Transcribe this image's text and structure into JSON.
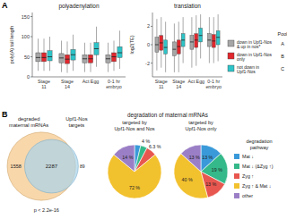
{
  "panel_labels": [
    "A",
    "B"
  ],
  "chart_data": [
    {
      "type": "box",
      "title": "polyadenylation",
      "y_label": "poly(A) tail length",
      "categories": [
        "Stage 11",
        "Stage 14",
        "Act Egg",
        "0-1 hr embryo"
      ],
      "ylim": [
        0,
        160
      ],
      "yticks": [
        0,
        50,
        100,
        150
      ],
      "grid": false,
      "series": [
        {
          "color": "#a6a6a6",
          "whisker_low": [
            15,
            12,
            12,
            12
          ],
          "q1": [
            38,
            35,
            35,
            35
          ],
          "median": [
            48,
            47,
            45,
            45
          ],
          "q3": [
            60,
            58,
            55,
            55
          ],
          "whisker_high": [
            95,
            90,
            85,
            85
          ]
        },
        {
          "color": "#e0282e",
          "whisker_low": [
            15,
            10,
            12,
            15
          ],
          "q1": [
            38,
            33,
            35,
            38
          ],
          "median": [
            48,
            44,
            45,
            50
          ],
          "q3": [
            60,
            55,
            55,
            60
          ],
          "whisker_high": [
            95,
            88,
            85,
            90
          ]
        },
        {
          "color": "#2ec4c8",
          "whisker_low": [
            15,
            15,
            25,
            20
          ],
          "q1": [
            40,
            42,
            55,
            48
          ],
          "median": [
            50,
            55,
            70,
            60
          ],
          "q3": [
            65,
            68,
            85,
            75
          ],
          "whisker_high": [
            100,
            105,
            125,
            115
          ]
        }
      ]
    },
    {
      "type": "box",
      "title": "translation",
      "y_label": "log2(TE)",
      "categories": [
        "Stage 11",
        "Stage 14",
        "Act Egg",
        "0-1 hr embryo"
      ],
      "ylim": [
        -3.5,
        3.5
      ],
      "yticks": [
        -2,
        0,
        2
      ],
      "grid": false,
      "series": [
        {
          "color": "#a6a6a6",
          "whisker_low": [
            -2.8,
            -3,
            -2.5,
            -2
          ],
          "q1": [
            -0.8,
            -1.2,
            -0.5,
            -0.2
          ],
          "median": [
            0,
            -0.5,
            0.3,
            0.5
          ],
          "q3": [
            0.8,
            0.3,
            1,
            1.2
          ],
          "whisker_high": [
            2.8,
            2.3,
            3,
            3
          ]
        },
        {
          "color": "#e0282e",
          "whisker_low": [
            -2.5,
            -3,
            -2.3,
            -2
          ],
          "q1": [
            -0.6,
            -1,
            -0.3,
            -0.3
          ],
          "median": [
            0.2,
            -0.2,
            0.5,
            0.4
          ],
          "q3": [
            1,
            0.5,
            1.2,
            1.1
          ],
          "whisker_high": [
            3,
            2.5,
            3.2,
            3
          ]
        },
        {
          "color": "#2ec4c8",
          "whisker_low": [
            -3,
            -2,
            -1.5,
            -1.8
          ],
          "q1": [
            -1,
            -0.2,
            0.3,
            0
          ],
          "median": [
            -0.3,
            0.5,
            1,
            0.8
          ],
          "q3": [
            0.5,
            1.2,
            1.8,
            1.5
          ],
          "whisker_high": [
            2.5,
            3,
            3.3,
            3.3
          ]
        }
      ]
    },
    {
      "type": "venn",
      "sets": [
        {
          "name": "degraded maternal mRNAs",
          "color": "#f6c98f",
          "only": 1558
        },
        {
          "name": "Upf1-Nos targets",
          "color": "#a9d3ea",
          "only": 89
        }
      ],
      "overlap": 2287,
      "annotation": "p < 2.2e-16"
    },
    {
      "type": "pie",
      "title": "targeted by Upf1-Nos and Nos",
      "values": [
        3.7,
        4,
        6.3,
        72,
        14
      ],
      "value_labels": [
        null,
        "4 %",
        "6.3 %",
        "72 %",
        "14 %"
      ],
      "colors": [
        "#3a9ad9",
        "#35b98a",
        "#e8574f",
        "#f2c12e",
        "#9b7fc6"
      ],
      "data_labels": true
    },
    {
      "type": "pie",
      "title": "targeted by Upf1-Nos only",
      "values": [
        13,
        19,
        13,
        40,
        13
      ],
      "value_labels": [
        "13 %",
        "19 %",
        "13 %",
        "40 %",
        "13 %"
      ],
      "colors": [
        "#3a9ad9",
        "#35b98a",
        "#e8574f",
        "#f2c12e",
        "#9b7fc6"
      ],
      "data_labels": true
    }
  ],
  "pool_legend": {
    "title": "Pool",
    "entries": [
      {
        "label": "down in Upf1-Nos & up in nos*",
        "pool": "A",
        "color": "#a6a6a6"
      },
      {
        "label": "down in Upf1-Nos only",
        "pool": "B",
        "color": "#e0282e"
      },
      {
        "label": "not down in Upf1-Nos",
        "pool": "C",
        "color": "#2ec4c8"
      }
    ]
  },
  "pie_heading": "degradation of maternal mRNAs",
  "pathway_legend": {
    "title": "degradation pathway",
    "entries": [
      {
        "label": "Mat ↓",
        "color": "#3a9ad9"
      },
      {
        "label": "Mat ↓ (&Zyg ↑)",
        "color": "#35b98a"
      },
      {
        "label": "Zyg ↑",
        "color": "#e8574f"
      },
      {
        "label": "Zyg ↑ & Mat ↓",
        "color": "#f2c12e"
      },
      {
        "label": "other",
        "color": "#9b7fc6"
      }
    ]
  }
}
